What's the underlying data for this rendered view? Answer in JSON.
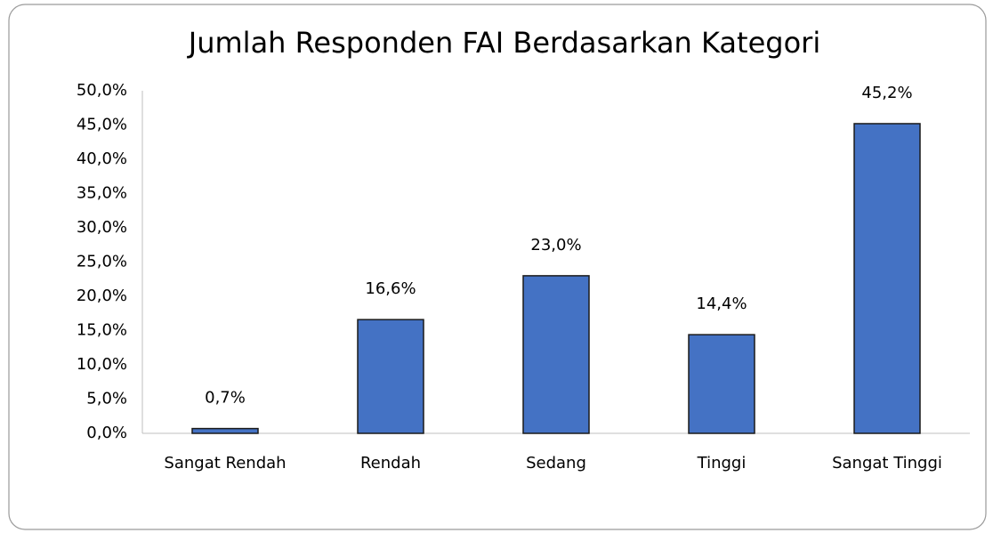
{
  "chart_data": {
    "type": "bar",
    "title": "Jumlah Responden FAI Berdasarkan Kategori",
    "categories": [
      "Sangat Rendah",
      "Rendah",
      "Sedang",
      "Tinggi",
      "Sangat Tinggi"
    ],
    "values": [
      0.7,
      16.6,
      23.0,
      14.4,
      45.2
    ],
    "value_labels": [
      "0,7%",
      "16,6%",
      "23,0%",
      "14,4%",
      "45,2%"
    ],
    "color": "#4472c4",
    "ylim": [
      0,
      50
    ],
    "yticks": [
      {
        "value": 0,
        "label": "0,0%"
      },
      {
        "value": 5,
        "label": "5,0%"
      },
      {
        "value": 10,
        "label": "10,0%"
      },
      {
        "value": 15,
        "label": "15,0%"
      },
      {
        "value": 20,
        "label": "20,0%"
      },
      {
        "value": 25,
        "label": "25,0%"
      },
      {
        "value": 30,
        "label": "30,0%"
      },
      {
        "value": 35,
        "label": "35,0%"
      },
      {
        "value": 40,
        "label": "40,0%"
      },
      {
        "value": 45,
        "label": "45,0%"
      },
      {
        "value": 50,
        "label": "50,0%"
      }
    ],
    "grid": false
  }
}
